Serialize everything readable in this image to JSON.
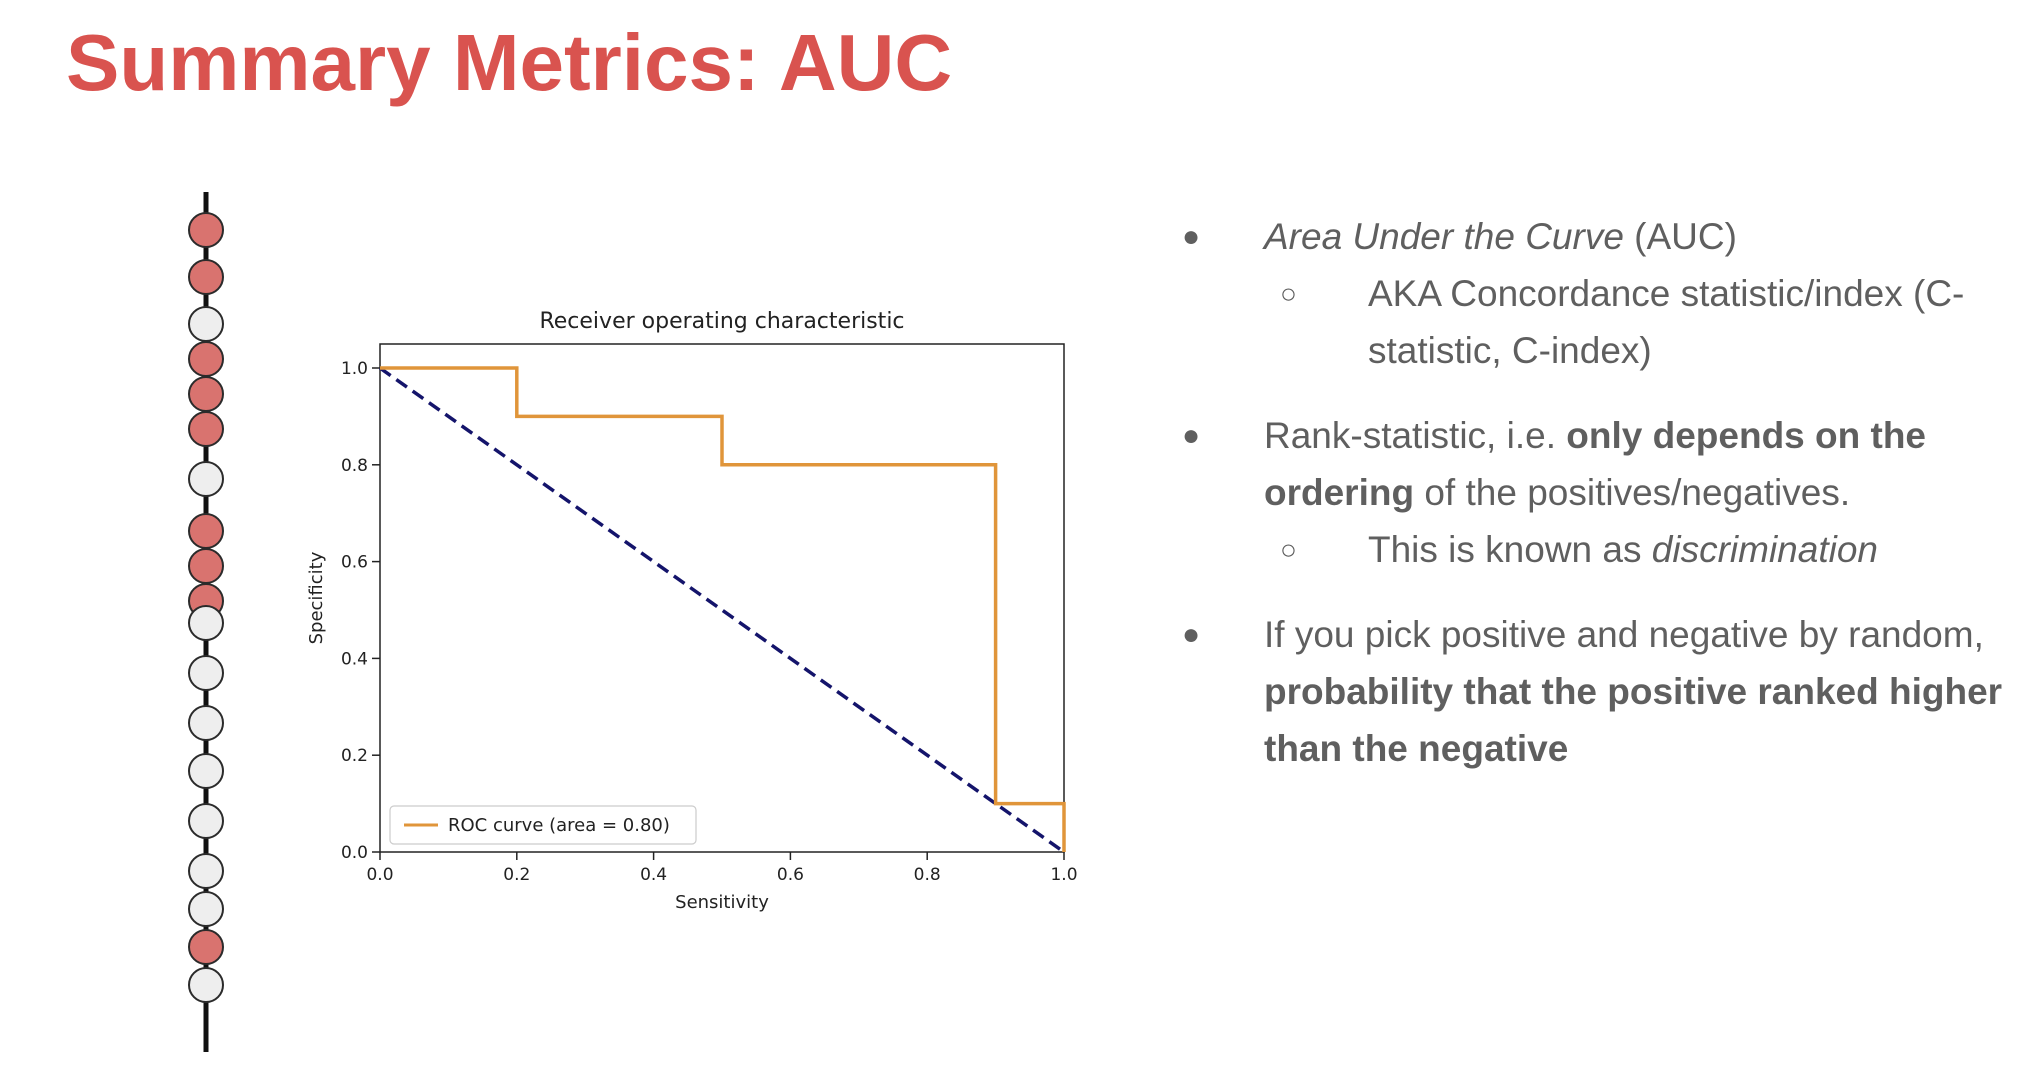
{
  "slide": {
    "title": "Summary Metrics: AUC"
  },
  "ranking": {
    "markers": [
      "pos",
      "pos",
      "neg",
      "pos",
      "pos",
      "pos",
      "neg",
      "pos",
      "pos",
      "pos",
      "neg",
      "neg",
      "neg",
      "neg",
      "neg",
      "neg",
      "neg",
      "pos",
      "neg"
    ],
    "colors": {
      "pos": "#d9736f",
      "neg": "#eeeeee",
      "outline": "#2b2b2b",
      "line": "#111111"
    }
  },
  "bullets": [
    {
      "parts": [
        {
          "t": "Area Under the Curve",
          "s": "em"
        },
        {
          "t": " (AUC)",
          "s": ""
        }
      ],
      "subs": [
        [
          {
            "t": "AKA Concordance statistic/index (C-statistic, C-index)",
            "s": ""
          }
        ]
      ]
    },
    {
      "parts": [
        {
          "t": "Rank-statistic, i.e. ",
          "s": ""
        },
        {
          "t": "only depends on the ordering",
          "s": "b"
        },
        {
          "t": " of the positives/negatives.",
          "s": ""
        }
      ],
      "subs": [
        [
          {
            "t": "This is known as ",
            "s": ""
          },
          {
            "t": "discrimination",
            "s": "em"
          }
        ]
      ]
    },
    {
      "parts": [
        {
          "t": "If you pick positive and negative by random, ",
          "s": ""
        },
        {
          "t": "probability that the positive ranked higher than the negative",
          "s": "b"
        }
      ],
      "subs": []
    }
  ],
  "chart_data": {
    "type": "line",
    "title": "Receiver operating characteristic",
    "xlabel": "Sensitivity",
    "ylabel": "Specificity",
    "xlim": [
      0,
      1
    ],
    "ylim": [
      0,
      1
    ],
    "xticks": [
      "0.0",
      "0.2",
      "0.4",
      "0.6",
      "0.8",
      "1.0"
    ],
    "yticks": [
      "0.0",
      "0.2",
      "0.4",
      "0.6",
      "0.8",
      "1.0"
    ],
    "series": [
      {
        "name": "ROC curve (area = 0.80)",
        "style": "step",
        "color": "#e0953a",
        "points": [
          [
            0,
            1.0
          ],
          [
            0.2,
            1.0
          ],
          [
            0.2,
            0.9
          ],
          [
            0.5,
            0.9
          ],
          [
            0.5,
            0.8
          ],
          [
            0.9,
            0.8
          ],
          [
            0.9,
            0.1
          ],
          [
            1.0,
            0.1
          ],
          [
            1.0,
            0.0
          ]
        ]
      },
      {
        "style": "dashed",
        "color": "#14146b",
        "points": [
          [
            0,
            1.0
          ],
          [
            1.0,
            0.0
          ]
        ]
      }
    ],
    "legend_position": "lower-left",
    "grid": false
  }
}
